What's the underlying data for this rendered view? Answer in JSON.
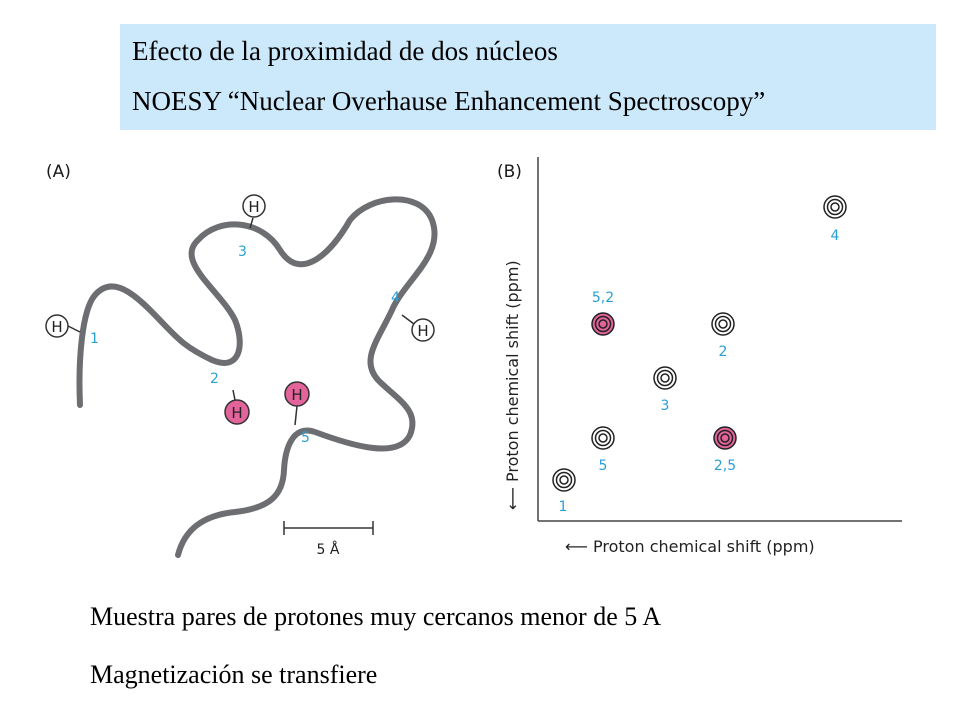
{
  "header": {
    "line1": "Efecto de la proximidad de dos núcleos",
    "line2": "NOESY “Nuclear  Overhause  Enhancement  Spectroscopy”"
  },
  "panel_a": {
    "label": "(A)",
    "atom": "H",
    "numbers": [
      "1",
      "2",
      "3",
      "4",
      "5"
    ],
    "scale_label": "5 Å"
  },
  "panel_b": {
    "label": "(B)",
    "x_axis_label": "⟵ Proton chemical shift (ppm)",
    "y_axis_label": "⟵ Proton chemical shift (ppm)",
    "peaks": [
      {
        "label": "1",
        "highlight": false
      },
      {
        "label": "5",
        "highlight": false
      },
      {
        "label": "3",
        "highlight": false
      },
      {
        "label": "2",
        "highlight": false
      },
      {
        "label": "4",
        "highlight": false
      },
      {
        "label": "5,2",
        "highlight": true
      },
      {
        "label": "2,5",
        "highlight": true
      }
    ]
  },
  "footer": {
    "line1": "Muestra pares de protones muy cercanos  menor  de 5 A",
    "line2": "Magnetización se transfiere"
  },
  "colors": {
    "title_bg": "#cce9fc",
    "chain": "#6d6e71",
    "number_blue": "#2a9fd6",
    "highlight_pink": "#e2649b"
  }
}
